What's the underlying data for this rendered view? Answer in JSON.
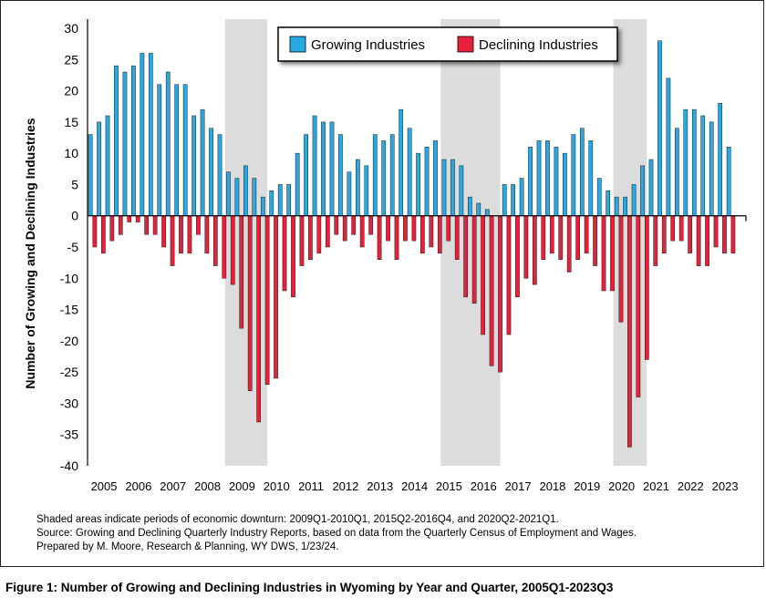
{
  "chart_data": {
    "type": "bar",
    "ylabel": "Number of Growing and Declining Industries",
    "ylim": [
      -40,
      30
    ],
    "yticks": [
      30,
      25,
      20,
      15,
      10,
      5,
      0,
      -5,
      -10,
      -15,
      -20,
      -25,
      -30,
      -35,
      -40
    ],
    "xlabels": [
      "2005",
      "2006",
      "2007",
      "2008",
      "2009",
      "2010",
      "2011",
      "2012",
      "2013",
      "2014",
      "2015",
      "2016",
      "2017",
      "2018",
      "2019",
      "2020",
      "2021",
      "2022",
      "2023"
    ],
    "quarters_per_year": 4,
    "first_year": 2005,
    "legend_position": "top-center",
    "grid": false,
    "series": [
      {
        "name": "Growing Industries",
        "color": "#29a9e1",
        "values": [
          13,
          15,
          16,
          24,
          23,
          24,
          26,
          26,
          21,
          23,
          21,
          21,
          16,
          17,
          14,
          13,
          7,
          6,
          8,
          6,
          3,
          4,
          5,
          5,
          10,
          13,
          16,
          15,
          15,
          13,
          7,
          9,
          8,
          13,
          12,
          13,
          17,
          14,
          10,
          11,
          12,
          9,
          9,
          8,
          3,
          2,
          1,
          0,
          5,
          5,
          6,
          11,
          12,
          12,
          11,
          10,
          13,
          14,
          12,
          6,
          4,
          3,
          3,
          5,
          8,
          9,
          28,
          22,
          14,
          17,
          17,
          16,
          15,
          18,
          11
        ]
      },
      {
        "name": "Declining Industries",
        "color": "#e8203a",
        "values": [
          -5,
          -6,
          -4,
          -3,
          -1,
          -1,
          -3,
          -3,
          -5,
          -8,
          -6,
          -6,
          -3,
          -6,
          -8,
          -10,
          -11,
          -18,
          -28,
          -33,
          -27,
          -26,
          -12,
          -13,
          -8,
          -7,
          -6,
          -5,
          -3,
          -4,
          -3,
          -5,
          -3,
          -7,
          -4,
          -7,
          -4,
          -4,
          -6,
          -5,
          -6,
          -4,
          -7,
          -13,
          -14,
          -19,
          -24,
          -25,
          -19,
          -13,
          -10,
          -11,
          -7,
          -6,
          -7,
          -9,
          -7,
          -6,
          -8,
          -12,
          -12,
          -17,
          -37,
          -29,
          -23,
          -8,
          -6,
          -4,
          -4,
          -6,
          -8,
          -8,
          -5,
          -6,
          -6
        ]
      }
    ],
    "shaded_periods": [
      {
        "label": "2009Q1-2010Q1",
        "start_index": 16,
        "end_index": 20
      },
      {
        "label": "2015Q2-2016Q4",
        "start_index": 41,
        "end_index": 47
      },
      {
        "label": "2020Q2-2021Q1",
        "start_index": 61,
        "end_index": 64
      }
    ],
    "shade_color": "#dcdcdc"
  },
  "notes": {
    "line1": "Shaded areas indicate periods of economic downturn: 2009Q1-2010Q1, 2015Q2-2016Q4, and 2020Q2-2021Q1.",
    "line2": "Source: Growing and Declining Quarterly Industry Reports, based on data from the Quarterly Census of Employment and Wages.",
    "line3": "Prepared by M. Moore, Research & Planning, WY DWS, 1/23/24."
  },
  "caption": "Figure 1: Number of Growing and Declining Industries in Wyoming by Year and Quarter, 2005Q1-2023Q3"
}
